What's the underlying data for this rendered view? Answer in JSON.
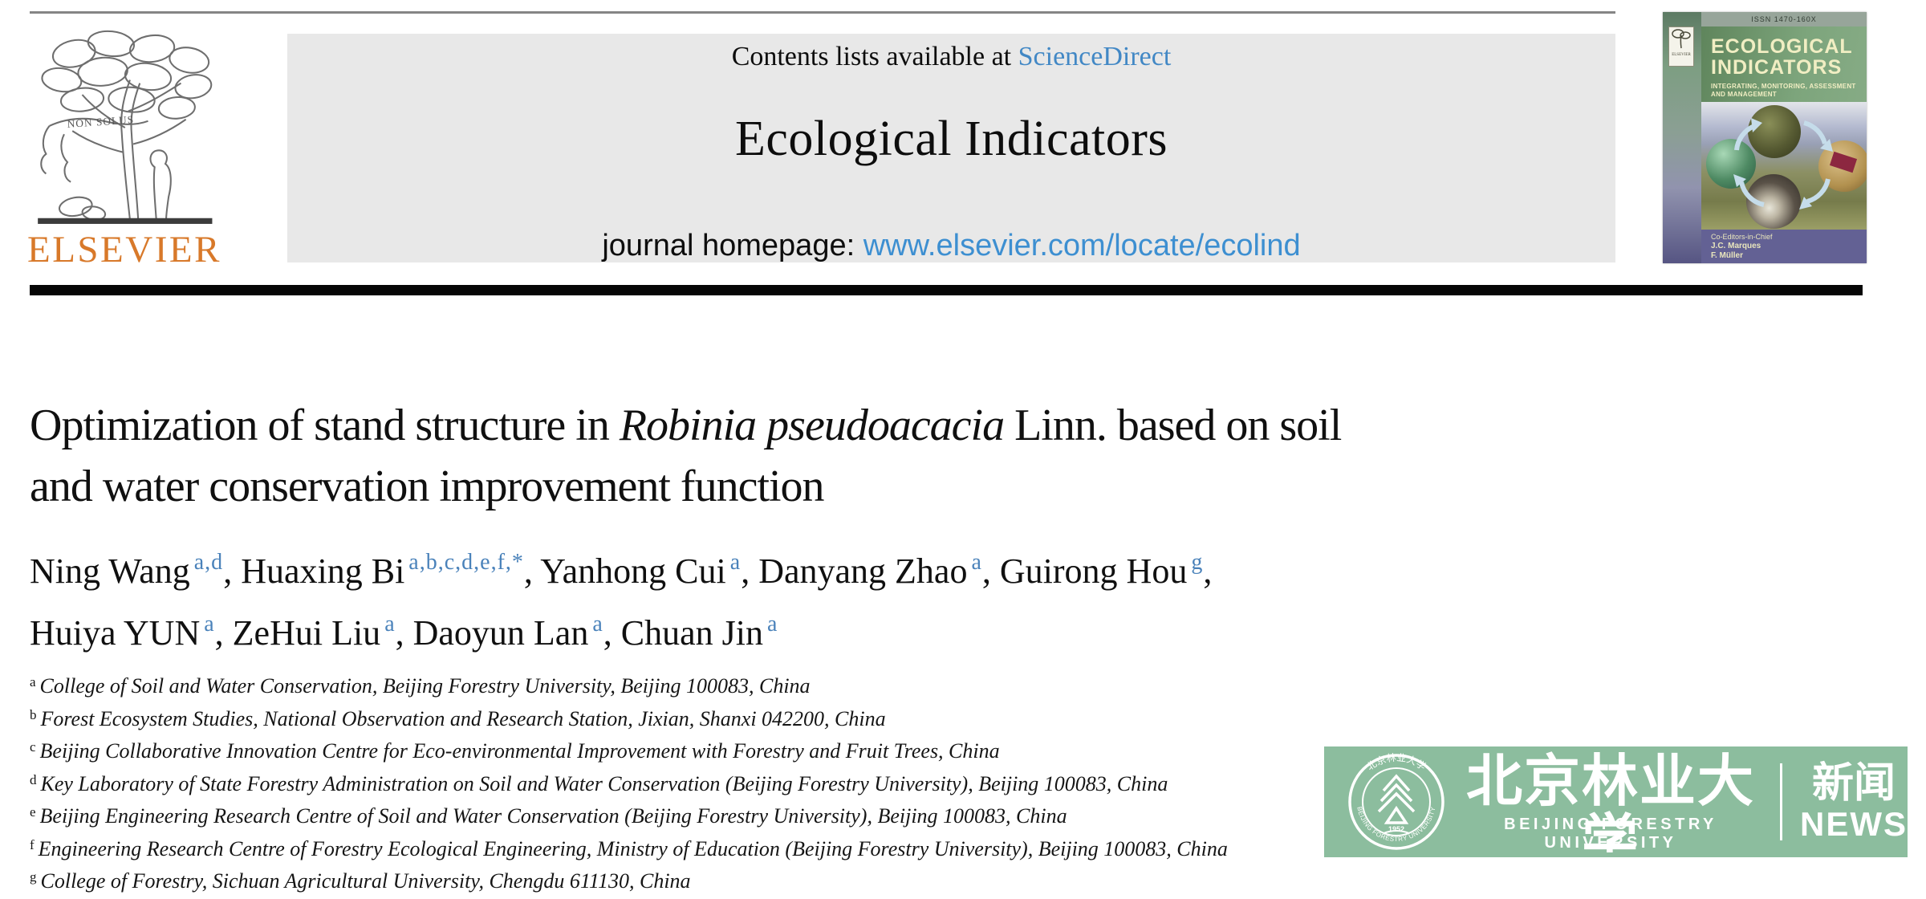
{
  "colors": {
    "sciencedirect_blue": "#4288c5",
    "url_blue": "#3d8fd1",
    "superscript_blue": "#4a82ba",
    "elsevier_orange": "#d8792a",
    "header_box_gray": "#e8e8e8",
    "banner_green": "#8cbd9e",
    "cover_bottom_purple": "#636194",
    "cover_header_green": "#7da57c"
  },
  "header": {
    "contents_prefix": "Contents lists available at",
    "sciencedirect": "ScienceDirect",
    "journal_name": "Ecological Indicators",
    "homepage_prefix": "journal homepage:",
    "homepage_url": "www.elsevier.com/locate/ecolind"
  },
  "publisher": {
    "wordmark": "ELSEVIER",
    "motto": "NON SOLUS"
  },
  "cover": {
    "issn": "ISSN 1470-160X",
    "publisher_small": "ELSEVIER",
    "title_line1": "ECOLOGICAL",
    "title_line2": "INDICATORS",
    "subtitle_line1": "INTEGRATING, MONITORING, ASSESSMENT",
    "subtitle_line2": "AND MANAGEMENT",
    "editors_label": "Co-Editors-in-Chief",
    "editors": [
      "J.C. Marques",
      "F. Müller"
    ]
  },
  "article": {
    "title_lines": [
      [
        {
          "t": "Optimization of stand structure in ",
          "i": false
        },
        {
          "t": "Robinia pseudoacacia",
          "i": true
        },
        {
          "t": " Linn. based on soil",
          "i": false
        }
      ],
      [
        {
          "t": "and water conservation improvement function",
          "i": false
        }
      ]
    ],
    "author_lines": [
      [
        {
          "name": "Ning Wang",
          "sup": "a,d",
          "trail": ", "
        },
        {
          "name": "Huaxing Bi",
          "sup": "a,b,c,d,e,f,*",
          "trail": ", "
        },
        {
          "name": "Yanhong Cui",
          "sup": "a",
          "trail": ", "
        },
        {
          "name": "Danyang Zhao",
          "sup": "a",
          "trail": ", "
        },
        {
          "name": "Guirong Hou",
          "sup": "g",
          "trail": ","
        }
      ],
      [
        {
          "name": "Huiya YUN",
          "sup": "a",
          "trail": ", "
        },
        {
          "name": "ZeHui Liu",
          "sup": "a",
          "trail": ", "
        },
        {
          "name": "Daoyun Lan",
          "sup": "a",
          "trail": ", "
        },
        {
          "name": "Chuan Jin",
          "sup": "a",
          "trail": ""
        }
      ]
    ],
    "affiliations": [
      {
        "label": "a",
        "text": "College of Soil and Water Conservation, Beijing Forestry University, Beijing 100083, China"
      },
      {
        "label": "b",
        "text": "Forest Ecosystem Studies, National Observation and Research Station, Jixian, Shanxi 042200, China"
      },
      {
        "label": "c",
        "text": "Beijing Collaborative Innovation Centre for Eco-environmental Improvement with Forestry and Fruit Trees, China"
      },
      {
        "label": "d",
        "text": "Key Laboratory of State Forestry Administration on Soil and Water Conservation (Beijing Forestry University), Beijing 100083, China"
      },
      {
        "label": "e",
        "text": "Beijing Engineering Research Centre of Soil and Water Conservation (Beijing Forestry University), Beijing 100083, China"
      },
      {
        "label": "f",
        "text": "Engineering Research Centre of Forestry Ecological Engineering, Ministry of Education (Beijing Forestry University), Beijing 100083, China"
      },
      {
        "label": "g",
        "text": "College of Forestry, Sichuan Agricultural University, Chengdu 611130, China"
      }
    ]
  },
  "watermark": {
    "university_zh": "北京林业大学",
    "university_en": "BEIJING FORESTRY UNIVERSITY",
    "news_zh": "新闻",
    "news_en": "NEWS",
    "seal_top_text": "北京林业大学",
    "seal_ring_text": "BEIJING FORESTRY UNIVERSITY",
    "seal_year": "1952"
  }
}
